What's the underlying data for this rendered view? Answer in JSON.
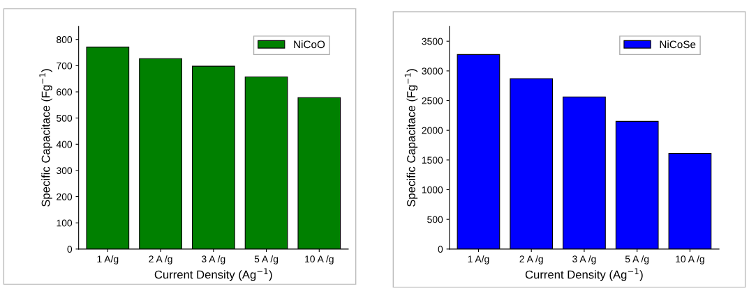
{
  "chart_data": [
    {
      "type": "bar",
      "categories": [
        "1 A/g",
        "2 A /g",
        "3 A /g",
        "5 A /g",
        "10 A /g"
      ],
      "xlabel": "Current Density (Ag$^{−1}$)",
      "ylabel": "Specific Capacitace (Fg$^{−1}$)",
      "ylim": [
        0,
        850
      ],
      "yticks": [
        0,
        100,
        200,
        300,
        400,
        500,
        600,
        700,
        800
      ],
      "legend": "top right",
      "grid": false,
      "series": [
        {
          "name": "NiCoO",
          "color": "#008000",
          "values": [
            771,
            727,
            698,
            657,
            578
          ]
        }
      ]
    },
    {
      "type": "bar",
      "categories": [
        "1 A/g",
        "2 A /g",
        "3 A /g",
        "5 A /g",
        "10 A /g"
      ],
      "xlabel": "Current Density (Ag$^{−1}$)",
      "ylabel": "Specific Capacitace (Fg$^{−1}$)",
      "ylim": [
        0,
        3750
      ],
      "yticks": [
        0,
        500,
        1000,
        1500,
        2000,
        2500,
        3000,
        3500
      ],
      "legend": "top right",
      "grid": false,
      "series": [
        {
          "name": "NiCoSe",
          "color": "#0000ff",
          "values": [
            3275,
            2870,
            2562,
            2150,
            1609
          ]
        }
      ]
    }
  ]
}
